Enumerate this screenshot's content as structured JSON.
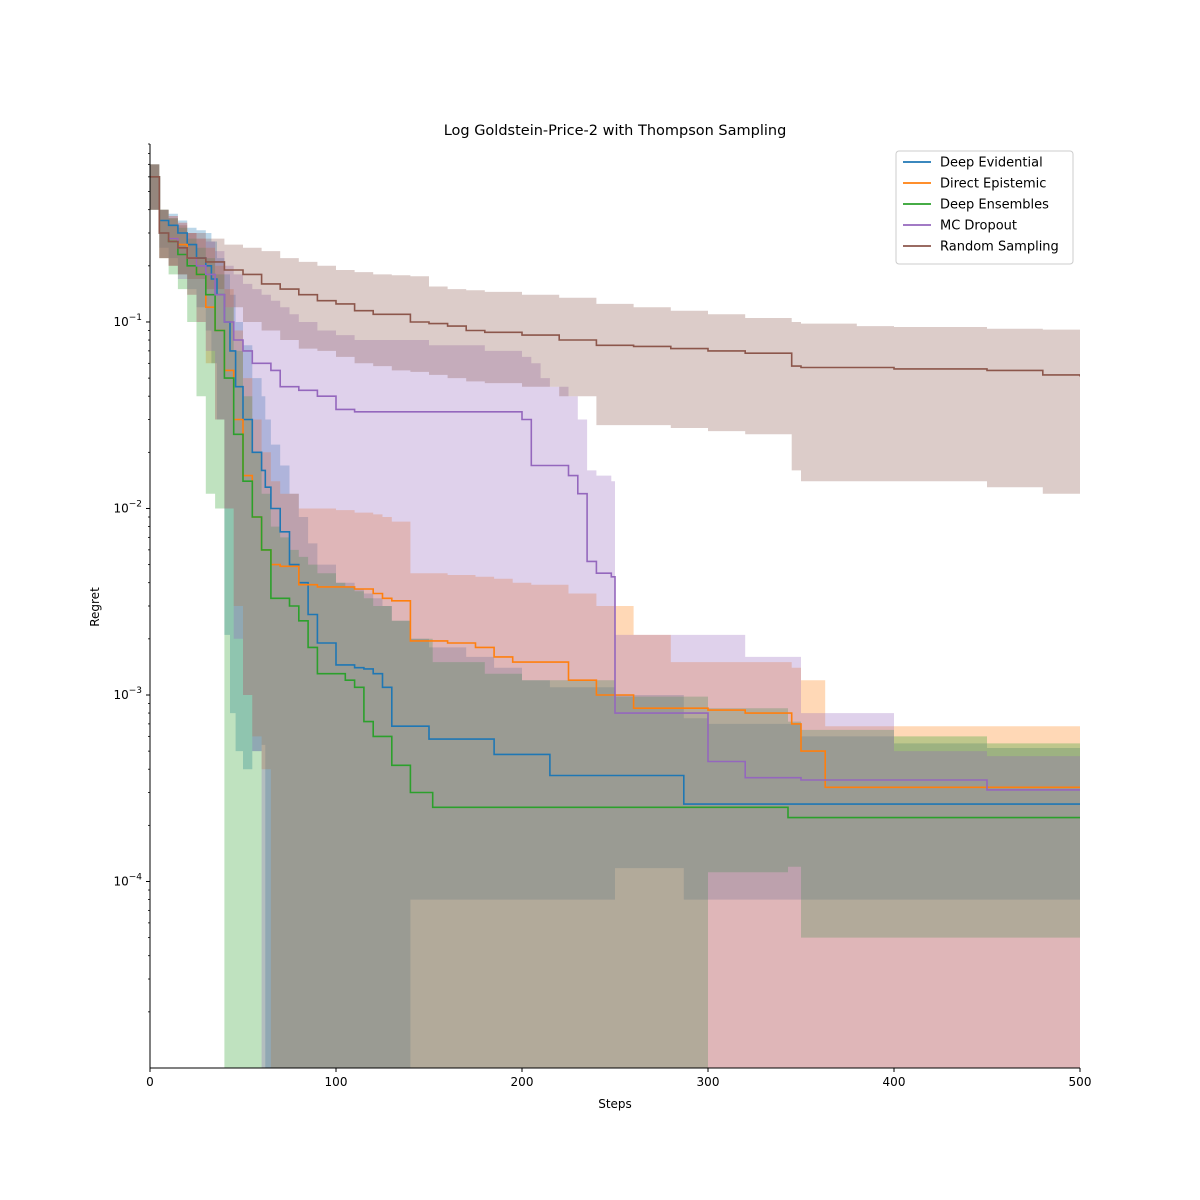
{
  "chart_data": {
    "type": "line",
    "title": "Log Goldstein-Price-2 with Thompson Sampling",
    "xlabel": "Steps",
    "ylabel": "Regret",
    "xlim": [
      0,
      500
    ],
    "ylim": [
      1e-05,
      0.9
    ],
    "yscale": "log",
    "xticks": [
      0,
      100,
      200,
      300,
      400,
      500
    ],
    "xtick_labels": [
      "0",
      "100",
      "200",
      "300",
      "400",
      "500"
    ],
    "yticks": [
      0.0001,
      0.001,
      0.01,
      0.1
    ],
    "ytick_labels": [
      "10",
      "10",
      "10",
      "10"
    ],
    "ytick_exponents": [
      "−4",
      "−3",
      "−2",
      "−1"
    ],
    "grid": false,
    "legend": "top-right",
    "band_opacity": 0.3,
    "series": [
      {
        "name": "Deep Evidential",
        "color": "#1f77b4",
        "x": [
          0,
          5,
          10,
          15,
          20,
          25,
          30,
          33,
          36,
          40,
          43,
          46,
          50,
          55,
          60,
          62,
          65,
          70,
          75,
          80,
          85,
          90,
          100,
          110,
          115,
          120,
          125,
          130,
          140,
          150,
          170,
          185,
          200,
          215,
          250,
          287,
          300,
          350,
          400,
          450,
          500
        ],
        "y": [
          0.6,
          0.35,
          0.33,
          0.3,
          0.26,
          0.22,
          0.2,
          0.17,
          0.14,
          0.1,
          0.07,
          0.045,
          0.03,
          0.02,
          0.016,
          0.013,
          0.01,
          0.0075,
          0.005,
          0.004,
          0.0027,
          0.0019,
          0.00145,
          0.0014,
          0.00138,
          0.0013,
          0.0011,
          0.00068,
          0.00068,
          0.00058,
          0.00058,
          0.00048,
          0.00048,
          0.00037,
          0.00037,
          0.00026,
          0.00026,
          0.00026,
          0.00026,
          0.00026,
          0.00026
        ],
        "upper": [
          0.7,
          0.4,
          0.38,
          0.35,
          0.32,
          0.31,
          0.3,
          0.27,
          0.22,
          0.18,
          0.14,
          0.1,
          0.075,
          0.05,
          0.04,
          0.03,
          0.022,
          0.017,
          0.012,
          0.009,
          0.0065,
          0.005,
          0.004,
          0.0037,
          0.0035,
          0.0033,
          0.003,
          0.0025,
          0.002,
          0.0018,
          0.0016,
          0.0014,
          0.0012,
          0.0011,
          0.001,
          0.00075,
          0.0007,
          0.0006,
          0.00055,
          0.00052,
          0.0005
        ],
        "lower": [
          0.4,
          0.25,
          0.22,
          0.18,
          0.15,
          0.12,
          0.09,
          0.06,
          0.03,
          0.0021,
          0.0008,
          0.0005,
          0.0004,
          0.0005,
          0.00054,
          1e-05,
          1e-05,
          1e-05,
          1e-05,
          1e-05,
          1e-05,
          1e-05,
          1e-05,
          1e-05,
          1e-05,
          1e-05,
          1e-05,
          1e-05,
          8e-05,
          8e-05,
          8e-05,
          8e-05,
          8e-05,
          8e-05,
          0.000118,
          8e-05,
          8e-05,
          8e-05,
          8e-05,
          8e-05,
          8e-05
        ]
      },
      {
        "name": "Direct Epistemic",
        "color": "#ff7f0e",
        "x": [
          0,
          5,
          10,
          15,
          20,
          25,
          30,
          35,
          40,
          45,
          50,
          55,
          60,
          65,
          70,
          80,
          90,
          100,
          110,
          120,
          125,
          130,
          140,
          160,
          175,
          185,
          195,
          205,
          225,
          240,
          260,
          280,
          300,
          320,
          345,
          350,
          363,
          370,
          400,
          450,
          500
        ],
        "y": [
          0.6,
          0.3,
          0.28,
          0.26,
          0.22,
          0.18,
          0.12,
          0.09,
          0.055,
          0.03,
          0.015,
          0.009,
          0.006,
          0.005,
          0.0049,
          0.0039,
          0.0038,
          0.0038,
          0.0037,
          0.0035,
          0.0033,
          0.0032,
          0.00195,
          0.0019,
          0.0018,
          0.0016,
          0.0015,
          0.0015,
          0.0012,
          0.001,
          0.00085,
          0.00085,
          0.00083,
          0.0008,
          0.0007,
          0.0005,
          0.00032,
          0.00032,
          0.00032,
          0.00032,
          0.00032
        ],
        "upper": [
          0.7,
          0.4,
          0.37,
          0.34,
          0.3,
          0.28,
          0.25,
          0.2,
          0.15,
          0.09,
          0.05,
          0.03,
          0.02,
          0.014,
          0.012,
          0.01,
          0.01,
          0.0098,
          0.0095,
          0.0093,
          0.009,
          0.0085,
          0.0045,
          0.0044,
          0.0043,
          0.0042,
          0.004,
          0.0039,
          0.0035,
          0.003,
          0.0021,
          0.0015,
          0.0015,
          0.0015,
          0.0014,
          0.0012,
          0.00068,
          0.00068,
          0.00068,
          0.00068,
          0.00066
        ],
        "lower": [
          0.4,
          0.22,
          0.2,
          0.18,
          0.14,
          0.1,
          0.06,
          0.03,
          0.01,
          0.003,
          0.001,
          0.0006,
          0.0004,
          1e-05,
          1e-05,
          1e-05,
          1e-05,
          1e-05,
          1e-05,
          1e-05,
          1e-05,
          1e-05,
          1e-05,
          1e-05,
          1e-05,
          1e-05,
          1e-05,
          1e-05,
          1e-05,
          1e-05,
          1e-05,
          1e-05,
          1e-05,
          1e-05,
          1e-05,
          1e-05,
          1e-05,
          1e-05,
          1e-05,
          1e-05,
          1e-05
        ]
      },
      {
        "name": "Deep Ensembles",
        "color": "#2ca02c",
        "x": [
          0,
          5,
          10,
          15,
          20,
          25,
          30,
          35,
          40,
          45,
          50,
          55,
          60,
          65,
          70,
          75,
          80,
          85,
          90,
          100,
          105,
          110,
          115,
          120,
          130,
          140,
          152,
          180,
          200,
          250,
          300,
          343,
          350,
          400,
          450,
          500
        ],
        "y": [
          0.6,
          0.3,
          0.27,
          0.23,
          0.2,
          0.18,
          0.14,
          0.09,
          0.05,
          0.025,
          0.014,
          0.009,
          0.006,
          0.0033,
          0.0033,
          0.003,
          0.0025,
          0.0018,
          0.0013,
          0.0013,
          0.0012,
          0.0011,
          0.00072,
          0.0006,
          0.00042,
          0.0003,
          0.00025,
          0.00025,
          0.00025,
          0.00025,
          0.00025,
          0.00022,
          0.00022,
          0.00022,
          0.00022,
          0.00022
        ],
        "upper": [
          0.7,
          0.4,
          0.36,
          0.32,
          0.28,
          0.25,
          0.22,
          0.18,
          0.12,
          0.07,
          0.04,
          0.02,
          0.012,
          0.008,
          0.007,
          0.006,
          0.0055,
          0.005,
          0.0045,
          0.004,
          0.0038,
          0.0036,
          0.0033,
          0.003,
          0.0025,
          0.002,
          0.0015,
          0.0013,
          0.0012,
          0.00098,
          0.00085,
          0.00072,
          0.00065,
          0.0006,
          0.00055,
          0.0005
        ],
        "lower": [
          0.4,
          0.22,
          0.18,
          0.15,
          0.1,
          0.04,
          0.012,
          0.01,
          1e-05,
          1e-05,
          1e-05,
          1e-05,
          1e-05,
          1e-05,
          1e-05,
          1e-05,
          1e-05,
          1e-05,
          1e-05,
          1e-05,
          1e-05,
          1e-05,
          1e-05,
          1e-05,
          1e-05,
          1e-05,
          1e-05,
          1e-05,
          1e-05,
          1e-05,
          0.000112,
          0.00012,
          5e-05,
          5e-05,
          5e-05,
          5e-05
        ]
      },
      {
        "name": "MC Dropout",
        "color": "#9467bd",
        "x": [
          0,
          5,
          10,
          15,
          20,
          25,
          30,
          35,
          40,
          45,
          50,
          55,
          60,
          65,
          70,
          75,
          80,
          90,
          100,
          110,
          150,
          180,
          200,
          205,
          210,
          215,
          225,
          230,
          235,
          240,
          248,
          250,
          255,
          300,
          320,
          350,
          400,
          450,
          500
        ],
        "y": [
          0.6,
          0.3,
          0.28,
          0.25,
          0.22,
          0.2,
          0.18,
          0.14,
          0.1,
          0.08,
          0.07,
          0.06,
          0.06,
          0.055,
          0.045,
          0.045,
          0.043,
          0.04,
          0.034,
          0.033,
          0.033,
          0.033,
          0.03,
          0.017,
          0.017,
          0.017,
          0.015,
          0.012,
          0.0052,
          0.0045,
          0.0043,
          0.0008,
          0.0008,
          0.00044,
          0.00036,
          0.00035,
          0.00035,
          0.00031,
          0.00031
        ],
        "upper": [
          0.7,
          0.4,
          0.37,
          0.34,
          0.3,
          0.28,
          0.27,
          0.24,
          0.2,
          0.18,
          0.16,
          0.15,
          0.14,
          0.13,
          0.12,
          0.11,
          0.1,
          0.09,
          0.085,
          0.08,
          0.075,
          0.07,
          0.065,
          0.06,
          0.05,
          0.045,
          0.04,
          0.03,
          0.016,
          0.015,
          0.014,
          0.0021,
          0.0021,
          0.0021,
          0.0016,
          0.0008,
          0.0005,
          0.00047,
          0.00045
        ],
        "lower": [
          0.4,
          0.22,
          0.2,
          0.17,
          0.14,
          0.1,
          0.07,
          0.03,
          0.01,
          0.002,
          0.001,
          0.0005,
          1e-05,
          1e-05,
          1e-05,
          1e-05,
          1e-05,
          1e-05,
          1e-05,
          1e-05,
          1e-05,
          1e-05,
          1e-05,
          1e-05,
          1e-05,
          1e-05,
          1e-05,
          1e-05,
          1e-05,
          1e-05,
          1e-05,
          1e-05,
          1e-05,
          1e-05,
          1e-05,
          1e-05,
          1e-05,
          1e-05,
          1e-05
        ]
      },
      {
        "name": "Random Sampling",
        "color": "#8c564b",
        "x": [
          0,
          5,
          10,
          15,
          20,
          30,
          40,
          50,
          60,
          70,
          80,
          90,
          100,
          110,
          120,
          130,
          140,
          150,
          160,
          170,
          180,
          200,
          220,
          240,
          260,
          280,
          300,
          320,
          345,
          350,
          380,
          400,
          450,
          480,
          500
        ],
        "y": [
          0.6,
          0.3,
          0.27,
          0.25,
          0.22,
          0.21,
          0.19,
          0.18,
          0.16,
          0.15,
          0.14,
          0.13,
          0.125,
          0.115,
          0.11,
          0.11,
          0.1,
          0.098,
          0.095,
          0.09,
          0.088,
          0.085,
          0.08,
          0.075,
          0.074,
          0.072,
          0.07,
          0.068,
          0.058,
          0.057,
          0.057,
          0.056,
          0.055,
          0.052,
          0.051
        ],
        "upper": [
          0.7,
          0.4,
          0.36,
          0.33,
          0.3,
          0.28,
          0.26,
          0.25,
          0.24,
          0.22,
          0.21,
          0.2,
          0.19,
          0.185,
          0.18,
          0.178,
          0.176,
          0.155,
          0.15,
          0.148,
          0.145,
          0.14,
          0.135,
          0.125,
          0.12,
          0.115,
          0.11,
          0.105,
          0.1,
          0.098,
          0.095,
          0.094,
          0.092,
          0.091,
          0.09
        ],
        "lower": [
          0.4,
          0.22,
          0.2,
          0.18,
          0.17,
          0.15,
          0.12,
          0.1,
          0.09,
          0.08,
          0.072,
          0.07,
          0.065,
          0.06,
          0.058,
          0.055,
          0.054,
          0.052,
          0.05,
          0.048,
          0.047,
          0.045,
          0.04,
          0.028,
          0.028,
          0.027,
          0.026,
          0.025,
          0.016,
          0.014,
          0.014,
          0.014,
          0.013,
          0.012,
          0.012
        ]
      }
    ]
  }
}
